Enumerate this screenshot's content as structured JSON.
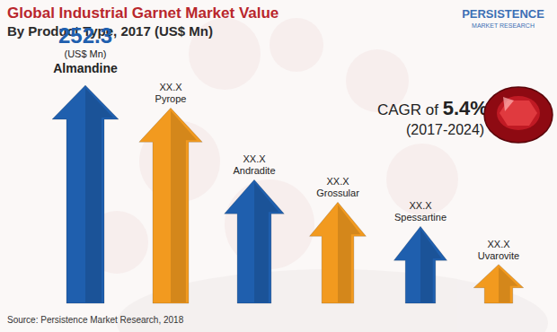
{
  "chart_data": {
    "type": "bar",
    "title": "Global Industrial Garnet Market Value",
    "subtitle": "By Product Type, 2017 (US$ Mn)",
    "categories": [
      "Almandine",
      "Pyrope",
      "Andradite",
      "Grossular",
      "Spessartine",
      "Uvarovite"
    ],
    "values": [
      252.3,
      226,
      143,
      117,
      89,
      45
    ],
    "value_labels": [
      "252.3",
      "XX.X",
      "XX.X",
      "XX.X",
      "XX.X",
      "XX.X"
    ],
    "colors": [
      "#1f5fae",
      "#f29a1f",
      "#1f5fae",
      "#f29a1f",
      "#1f5fae",
      "#f29a1f"
    ],
    "data_labels": true,
    "tick_labels": false,
    "annotations": [
      "(US$ Mn)",
      "CAGR of",
      "5.4%",
      "(2017-2024)"
    ],
    "source": "Source: Persistence Market Research, 2018",
    "logo": [
      "PERSISTENCE",
      "MARKET RESEARCH"
    ]
  }
}
